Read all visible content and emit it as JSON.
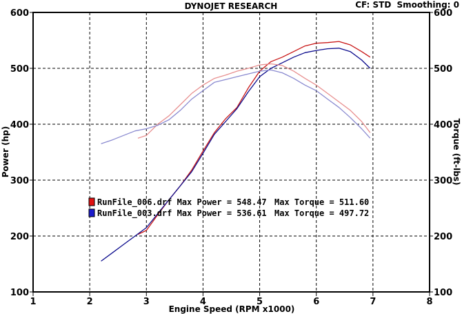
{
  "header": {
    "title": "DYNOJET RESEARCH",
    "cf": "CF: STD",
    "smoothing": "Smoothing: 0"
  },
  "chart_data": {
    "type": "line",
    "xlabel": "Engine Speed (RPM x1000)",
    "ylabel_left": "Power (hp)",
    "ylabel_right": "Torque (ft-lbs)",
    "xlim": [
      1,
      8
    ],
    "ylim": [
      100,
      600
    ],
    "xticks": [
      "1",
      "2",
      "3",
      "4",
      "5",
      "6",
      "7",
      "8"
    ],
    "yticks_left": [
      "100",
      "200",
      "300",
      "400",
      "500",
      "600"
    ],
    "yticks_right": [
      "100",
      "200",
      "300",
      "400",
      "500",
      "600"
    ],
    "grid": true,
    "colors": {
      "run006_power": "#c81414",
      "run006_torque": "#e89090",
      "run003_power": "#0a0a8c",
      "run003_torque": "#8a8ad0"
    },
    "series": [
      {
        "key": "run006_power",
        "x": [
          2.85,
          3.0,
          3.2,
          3.4,
          3.6,
          3.8,
          4.0,
          4.2,
          4.4,
          4.6,
          4.8,
          5.0,
          5.2,
          5.4,
          5.6,
          5.8,
          6.0,
          6.2,
          6.4,
          6.6,
          6.8,
          6.95
        ],
        "y": [
          203,
          210,
          238,
          265,
          290,
          318,
          352,
          385,
          410,
          430,
          465,
          495,
          512,
          520,
          530,
          540,
          545,
          546,
          548,
          542,
          530,
          520
        ]
      },
      {
        "key": "run003_power",
        "x": [
          2.2,
          2.4,
          2.6,
          2.8,
          3.0,
          3.2,
          3.4,
          3.6,
          3.8,
          4.0,
          4.2,
          4.4,
          4.6,
          4.8,
          5.0,
          5.2,
          5.4,
          5.6,
          5.8,
          6.0,
          6.2,
          6.4,
          6.6,
          6.8,
          6.95
        ],
        "y": [
          155,
          170,
          185,
          200,
          215,
          240,
          265,
          290,
          315,
          348,
          382,
          405,
          428,
          458,
          485,
          500,
          510,
          520,
          528,
          532,
          535,
          536,
          530,
          515,
          500
        ]
      },
      {
        "key": "run006_torque",
        "x": [
          2.85,
          3.0,
          3.2,
          3.4,
          3.6,
          3.8,
          4.0,
          4.2,
          4.4,
          4.6,
          4.8,
          5.0,
          5.2,
          5.4,
          5.6,
          5.8,
          6.0,
          6.2,
          6.4,
          6.6,
          6.8,
          6.95
        ],
        "y": [
          375,
          380,
          400,
          415,
          435,
          455,
          470,
          482,
          488,
          495,
          500,
          506,
          508,
          505,
          495,
          482,
          470,
          455,
          440,
          425,
          405,
          385
        ]
      },
      {
        "key": "run003_torque",
        "x": [
          2.2,
          2.4,
          2.6,
          2.8,
          3.0,
          3.2,
          3.4,
          3.6,
          3.8,
          4.0,
          4.2,
          4.4,
          4.6,
          4.8,
          5.0,
          5.2,
          5.4,
          5.6,
          5.8,
          6.0,
          6.2,
          6.4,
          6.6,
          6.8,
          6.95
        ],
        "y": [
          365,
          372,
          380,
          388,
          392,
          398,
          408,
          425,
          445,
          460,
          475,
          480,
          485,
          490,
          495,
          497,
          492,
          482,
          470,
          460,
          445,
          430,
          412,
          392,
          375
        ]
      }
    ],
    "legend": [
      {
        "key": "run006_power",
        "color": "#e01010",
        "label": "RunFile_006.drf Max Power = 548.47",
        "torque": "Max Torque = 511.60"
      },
      {
        "key": "run003_power",
        "color": "#1a1acc",
        "label": "RunFile_003.drf Max Power = 536.61",
        "torque": "Max Torque = 497.72"
      }
    ]
  }
}
